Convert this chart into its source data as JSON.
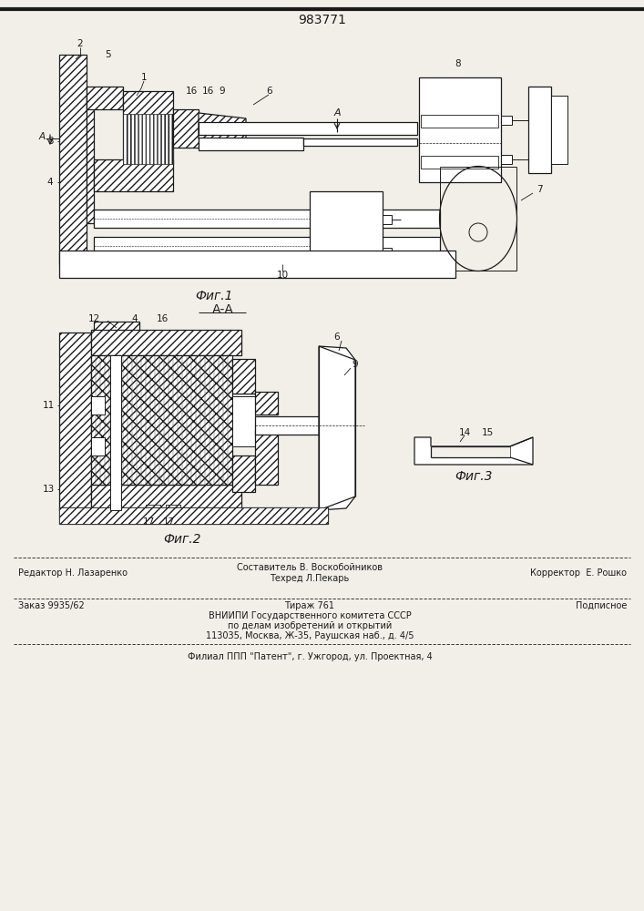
{
  "patent_number": "983771",
  "bg_color": "#f2efe9",
  "line_color": "#1a1a1a",
  "fig1_caption": "Фиг.1",
  "fig2_caption": "Фиг.2",
  "fig3_caption": "Фиг.3",
  "section_label": "А-А",
  "footer": {
    "line1_left": "Редактор Н. Лазаренко",
    "line1_center_top": "Составитель В. Воскобойников",
    "line1_center_bot": "Техред Л.Пекарь",
    "line1_right": "Корректор  Е. Рошко",
    "line2_left": "Заказ 9935/62",
    "line2_center": "Тираж 761",
    "line2_right": "Подписное",
    "line3": "ВНИИПИ Государственного комитета СССР",
    "line4": "по делам изобретений и открытий",
    "line5": "113035, Москва, Ж-35, Раушская наб., д. 4/5",
    "line6": "Филиал ППП \"Патент\", г. Ужгород, ул. Проектная, 4"
  }
}
